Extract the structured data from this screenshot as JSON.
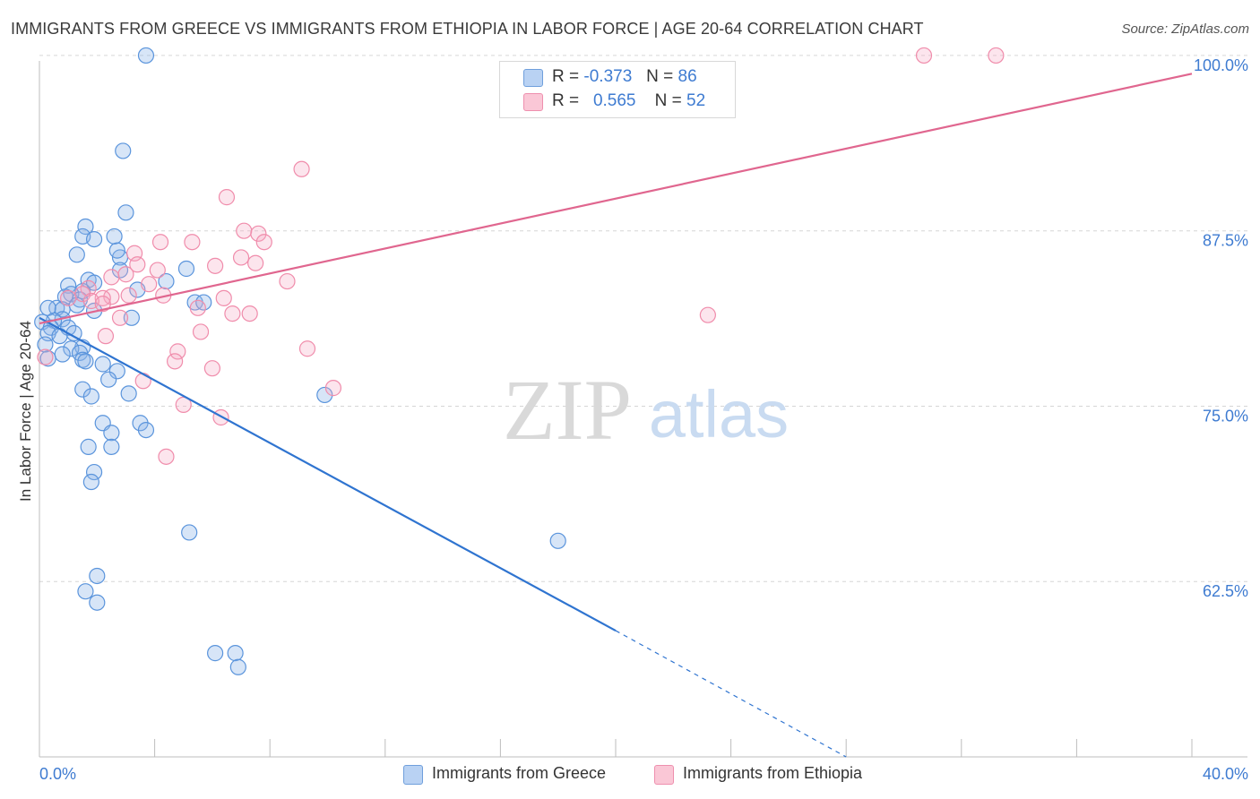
{
  "title": "IMMIGRANTS FROM GREECE VS IMMIGRANTS FROM ETHIOPIA IN LABOR FORCE | AGE 20-64 CORRELATION CHART",
  "source": "Source: ZipAtlas.com",
  "watermark": {
    "zip": "ZIP",
    "atlas": "atlas"
  },
  "colors": {
    "greece": "#5a94dc",
    "ethiopia": "#f08cab",
    "greece_line": "#2f74d0",
    "ethiopia_line": "#e0668f",
    "tick_text": "#3e7bd1"
  },
  "legend": {
    "greece": {
      "r_label": "R =",
      "r_value": "-0.373",
      "n_label": "N =",
      "n_value": "86"
    },
    "ethiopia": {
      "r_label": "R =",
      "r_value": "0.565",
      "n_label": "N =",
      "n_value": "52"
    }
  },
  "chart_data": {
    "type": "scatter",
    "title": "IMMIGRANTS FROM GREECE VS IMMIGRANTS FROM ETHIOPIA IN LABOR FORCE | AGE 20-64 CORRELATION CHART",
    "xlabel": "",
    "ylabel": "In Labor Force | Age 20-64",
    "xlim": [
      0,
      40
    ],
    "ylim": [
      50,
      101.4
    ],
    "x_tick_labels": [
      "0.0%",
      "40.0%"
    ],
    "y_ticks": [
      62.5,
      75.0,
      87.5,
      100.0
    ],
    "y_tick_labels": [
      "62.5%",
      "75.0%",
      "87.5%",
      "100.0%"
    ],
    "grid": true,
    "legend_position": "top-center",
    "series": [
      {
        "name": "Immigrants from Greece",
        "r": -0.373,
        "n": 86,
        "points": [
          [
            3.7,
            100.0
          ],
          [
            2.9,
            93.2
          ],
          [
            3.0,
            88.8
          ],
          [
            1.6,
            87.8
          ],
          [
            1.5,
            87.1
          ],
          [
            2.6,
            87.1
          ],
          [
            1.9,
            86.9
          ],
          [
            1.3,
            85.8
          ],
          [
            2.8,
            85.6
          ],
          [
            2.7,
            86.1
          ],
          [
            2.8,
            84.7
          ],
          [
            5.1,
            84.8
          ],
          [
            1.7,
            84.0
          ],
          [
            1.9,
            83.8
          ],
          [
            1.0,
            83.6
          ],
          [
            4.4,
            83.9
          ],
          [
            3.4,
            83.3
          ],
          [
            1.5,
            83.2
          ],
          [
            1.1,
            83.0
          ],
          [
            1.4,
            82.6
          ],
          [
            0.9,
            82.8
          ],
          [
            5.4,
            82.4
          ],
          [
            5.7,
            82.4
          ],
          [
            1.3,
            82.2
          ],
          [
            0.6,
            82.0
          ],
          [
            0.8,
            81.9
          ],
          [
            0.3,
            82.0
          ],
          [
            1.9,
            81.8
          ],
          [
            3.2,
            81.3
          ],
          [
            0.8,
            81.2
          ],
          [
            0.5,
            81.1
          ],
          [
            0.1,
            81.0
          ],
          [
            0.4,
            80.6
          ],
          [
            0.3,
            80.2
          ],
          [
            1.0,
            80.6
          ],
          [
            1.2,
            80.2
          ],
          [
            0.7,
            80.0
          ],
          [
            0.2,
            79.4
          ],
          [
            1.5,
            79.2
          ],
          [
            1.1,
            79.1
          ],
          [
            1.4,
            78.8
          ],
          [
            0.8,
            78.7
          ],
          [
            0.3,
            78.4
          ],
          [
            1.5,
            78.3
          ],
          [
            1.6,
            78.2
          ],
          [
            2.2,
            78.0
          ],
          [
            2.7,
            77.5
          ],
          [
            2.4,
            76.9
          ],
          [
            1.5,
            76.2
          ],
          [
            3.1,
            75.9
          ],
          [
            1.8,
            75.7
          ],
          [
            9.9,
            75.8
          ],
          [
            2.2,
            73.8
          ],
          [
            3.5,
            73.8
          ],
          [
            3.7,
            73.3
          ],
          [
            2.5,
            73.1
          ],
          [
            2.5,
            72.1
          ],
          [
            1.7,
            72.1
          ],
          [
            1.9,
            70.3
          ],
          [
            1.8,
            69.6
          ],
          [
            5.2,
            66.0
          ],
          [
            18.0,
            65.4
          ],
          [
            2.0,
            62.9
          ],
          [
            1.6,
            61.8
          ],
          [
            2.0,
            61.0
          ],
          [
            6.1,
            57.4
          ],
          [
            6.8,
            57.4
          ],
          [
            6.9,
            56.4
          ]
        ],
        "trend": {
          "x1": 0.0,
          "y1": 81.3,
          "x2": 20.0,
          "y2": 59.0,
          "dash_to_x": 28.0,
          "dash_to_y": 50.0
        }
      },
      {
        "name": "Immigrants from Ethiopia",
        "r": 0.565,
        "n": 52,
        "points": [
          [
            30.7,
            100.0
          ],
          [
            33.2,
            100.0
          ],
          [
            9.1,
            91.9
          ],
          [
            6.5,
            89.9
          ],
          [
            7.1,
            87.5
          ],
          [
            7.6,
            87.3
          ],
          [
            7.8,
            86.7
          ],
          [
            4.2,
            86.7
          ],
          [
            5.3,
            86.7
          ],
          [
            3.3,
            85.9
          ],
          [
            3.4,
            85.1
          ],
          [
            7.0,
            85.6
          ],
          [
            7.5,
            85.2
          ],
          [
            6.1,
            85.0
          ],
          [
            4.1,
            84.7
          ],
          [
            3.0,
            84.4
          ],
          [
            2.5,
            84.2
          ],
          [
            8.6,
            83.9
          ],
          [
            3.8,
            83.7
          ],
          [
            1.7,
            83.4
          ],
          [
            1.5,
            83.0
          ],
          [
            4.3,
            82.9
          ],
          [
            3.1,
            82.9
          ],
          [
            2.5,
            82.8
          ],
          [
            2.2,
            82.7
          ],
          [
            1.8,
            82.5
          ],
          [
            2.2,
            82.3
          ],
          [
            1.0,
            82.7
          ],
          [
            6.4,
            82.7
          ],
          [
            5.5,
            82.0
          ],
          [
            6.7,
            81.6
          ],
          [
            7.3,
            81.6
          ],
          [
            23.2,
            81.5
          ],
          [
            2.8,
            81.3
          ],
          [
            5.6,
            80.3
          ],
          [
            2.3,
            80.0
          ],
          [
            9.3,
            79.1
          ],
          [
            4.8,
            78.9
          ],
          [
            4.7,
            78.2
          ],
          [
            6.0,
            77.7
          ],
          [
            3.6,
            76.8
          ],
          [
            10.2,
            76.3
          ],
          [
            5.0,
            75.1
          ],
          [
            6.3,
            74.2
          ],
          [
            4.4,
            71.4
          ],
          [
            0.2,
            78.5
          ]
        ],
        "trend": {
          "x1": 0.0,
          "y1": 80.9,
          "x2": 40.0,
          "y2": 98.7
        }
      }
    ]
  },
  "bottom_legend": [
    "Immigrants from Greece",
    "Immigrants from Ethiopia"
  ]
}
